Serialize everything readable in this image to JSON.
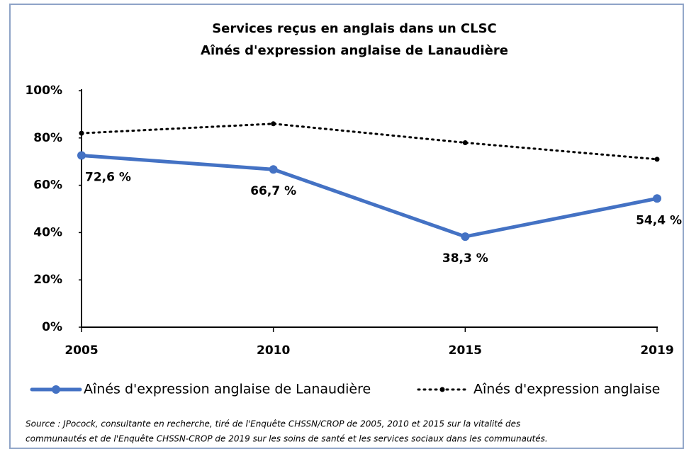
{
  "chart_data": {
    "type": "line",
    "title": "Services reçus en anglais  dans un CLSC",
    "subtitle": "Aînés d'expression anglaise de Lanaudière",
    "categories": [
      "2005",
      "2010",
      "2015",
      "2019"
    ],
    "series": [
      {
        "name": "Aînés d'expression anglaise de Lanaudière",
        "color": "#4472c4",
        "style": "solid",
        "values": [
          72.6,
          66.7,
          38.3,
          54.4
        ],
        "value_labels": [
          "72,6 %",
          "66,7 %",
          "38,3 %",
          "54,4 %"
        ]
      },
      {
        "name": "Aînés d'expression anglaise",
        "color": "#000000",
        "style": "dotted",
        "values": [
          82,
          86,
          78,
          71
        ]
      }
    ],
    "ylim": [
      0,
      100
    ],
    "yticks": [
      {
        "value": 0,
        "label": "0%"
      },
      {
        "value": 20,
        "label": "20%"
      },
      {
        "value": 40,
        "label": "40%"
      },
      {
        "value": 60,
        "label": "60%"
      },
      {
        "value": 80,
        "label": "80%"
      },
      {
        "value": 100,
        "label": "100%"
      }
    ],
    "legend": "bottom",
    "source": [
      "Source : JPocock, consultante en recherche, tiré de l'Enquête CHSSN/CROP de 2005, 2010 et 2015 sur la vitalité des",
      "communautés et de l'Enquête CHSSN-CROP de 2019 sur les soins de santé et les services sociaux dans les communautés."
    ]
  }
}
